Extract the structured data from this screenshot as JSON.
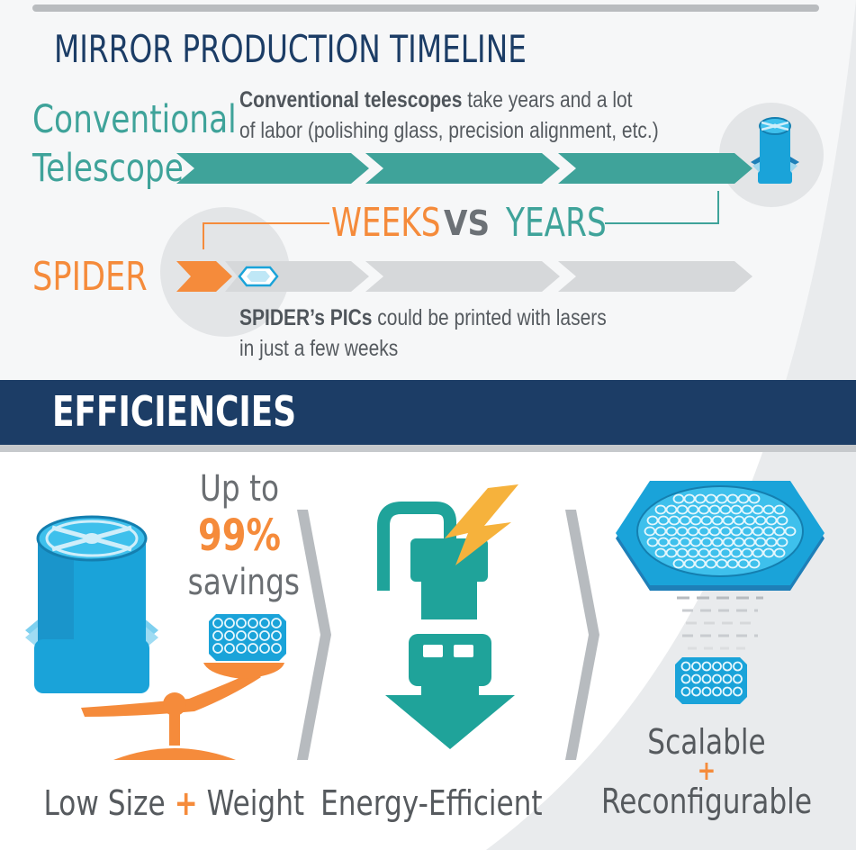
{
  "timeline": {
    "title": "MIRROR PRODUCTION TIMELINE",
    "conventional": {
      "label_line1": "Conventional",
      "label_line2": "Telescope",
      "desc_bold": "Conventional telescopes",
      "desc_rest_line1": " take years and a lot",
      "desc_line2": "of labor (polishing glass, precision alignment, etc.)"
    },
    "comparison": {
      "weeks": "WEEKS",
      "vs": "VS",
      "years": "YEARS"
    },
    "spider": {
      "label": "SPIDER",
      "desc_bold": "SPIDER’s PICs",
      "desc_rest_line1": " could be printed with lasers",
      "desc_line2": "in just a few weeks"
    }
  },
  "efficiencies": {
    "title": "EFFICIENCIES",
    "savings": {
      "line1": "Up to",
      "percent": "99%",
      "line3": "savings"
    },
    "items": [
      {
        "label_part1": "Low Size ",
        "plus": "+",
        "label_part2": " Weight"
      },
      {
        "label": "Energy-Efficient"
      },
      {
        "label_line1": "Scalable",
        "plus": "+",
        "label_line2": "Reconfigurable"
      }
    ]
  },
  "colors": {
    "teal": "#3fa39a",
    "orange": "#f58b3b",
    "navy": "#1c3d66",
    "blue": "#1aa3d9",
    "gray_arrow": "#d6d8da"
  }
}
